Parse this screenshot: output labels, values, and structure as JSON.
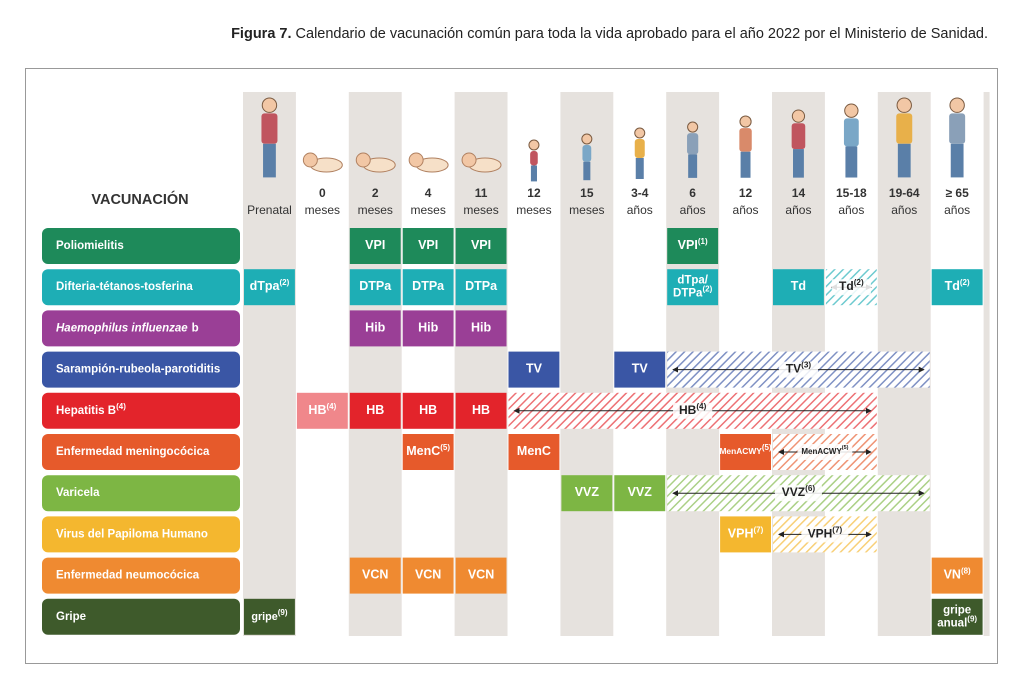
{
  "caption": {
    "label": "Figura 7.",
    "text": "Calendario de vacunación común para toda la vida aprobado para el año 2022 por el Ministerio de Sanidad."
  },
  "header": "VACUNACIÓN",
  "columns": [
    {
      "bottom": "Prenatal"
    },
    {
      "top": "0",
      "bottom": "meses"
    },
    {
      "top": "2",
      "bottom": "meses"
    },
    {
      "top": "4",
      "bottom": "meses"
    },
    {
      "top": "11",
      "bottom": "meses"
    },
    {
      "top": "12",
      "bottom": "meses"
    },
    {
      "top": "15",
      "bottom": "meses"
    },
    {
      "top": "3-4",
      "bottom": "años"
    },
    {
      "top": "6",
      "bottom": "años"
    },
    {
      "top": "12",
      "bottom": "años"
    },
    {
      "top": "14",
      "bottom": "años"
    },
    {
      "top": "15-18",
      "bottom": "años"
    },
    {
      "top": "19-64",
      "bottom": "años"
    },
    {
      "top": "≥ 65",
      "bottom": "años"
    }
  ],
  "rows": [
    {
      "name": "Poliomielitis",
      "color": "#1e8a5a",
      "cells": [
        {
          "col": 2,
          "span": 1,
          "style": "solid",
          "lines": [
            "VPI"
          ]
        },
        {
          "col": 3,
          "span": 1,
          "style": "solid",
          "lines": [
            "VPI"
          ]
        },
        {
          "col": 4,
          "span": 1,
          "style": "solid",
          "lines": [
            "VPI"
          ]
        },
        {
          "col": 8,
          "span": 1,
          "style": "solid",
          "lines": [
            "VPI"
          ],
          "sup": "(1)"
        }
      ]
    },
    {
      "name": "Difteria-tétanos-tosferina",
      "color": "#1eaeb5",
      "cells": [
        {
          "col": 0,
          "span": 1,
          "style": "solid",
          "lines": [
            "dTpa"
          ],
          "sup": "(2)"
        },
        {
          "col": 2,
          "span": 1,
          "style": "solid",
          "lines": [
            "DTPa"
          ]
        },
        {
          "col": 3,
          "span": 1,
          "style": "solid",
          "lines": [
            "DTPa"
          ]
        },
        {
          "col": 4,
          "span": 1,
          "style": "solid",
          "lines": [
            "DTPa"
          ]
        },
        {
          "col": 8,
          "span": 1,
          "style": "solid",
          "lines": [
            "dTpa/",
            "DTPa"
          ],
          "sup": "(2)"
        },
        {
          "col": 10,
          "span": 1,
          "style": "solid",
          "lines": [
            "Td"
          ]
        },
        {
          "col": 11,
          "span": 1,
          "style": "hatched",
          "lines": [
            "Td"
          ],
          "sup": "(2)"
        },
        {
          "col": 13,
          "span": 1,
          "style": "solid",
          "lines": [
            "Td"
          ],
          "sup": "(2)"
        }
      ]
    },
    {
      "name_italic": "Haemophilus influenzae",
      "name": "b",
      "color": "#9a3f96",
      "cells": [
        {
          "col": 2,
          "span": 1,
          "style": "solid",
          "lines": [
            "Hib"
          ]
        },
        {
          "col": 3,
          "span": 1,
          "style": "solid",
          "lines": [
            "Hib"
          ]
        },
        {
          "col": 4,
          "span": 1,
          "style": "solid",
          "lines": [
            "Hib"
          ]
        }
      ]
    },
    {
      "name": "Sarampión-rubeola-parotiditis",
      "color": "#3a56a5",
      "cells": [
        {
          "col": 5,
          "span": 1,
          "style": "solid",
          "lines": [
            "TV"
          ]
        },
        {
          "col": 7,
          "span": 1,
          "style": "solid",
          "lines": [
            "TV"
          ]
        },
        {
          "col": 8,
          "span": 5,
          "style": "hatched",
          "lines": [
            "TV"
          ],
          "sup": "(3)"
        }
      ]
    },
    {
      "name": "Hepatitis B",
      "sup": "(4)",
      "color": "#e3242b",
      "cells": [
        {
          "col": 1,
          "span": 1,
          "style": "light",
          "lines": [
            "HB"
          ],
          "sup": "(4)"
        },
        {
          "col": 2,
          "span": 1,
          "style": "solid",
          "lines": [
            "HB"
          ]
        },
        {
          "col": 3,
          "span": 1,
          "style": "solid",
          "lines": [
            "HB"
          ]
        },
        {
          "col": 4,
          "span": 1,
          "style": "solid",
          "lines": [
            "HB"
          ]
        },
        {
          "col": 5,
          "span": 7,
          "style": "hatched",
          "lines": [
            "HB"
          ],
          "sup": "(4)"
        }
      ]
    },
    {
      "name": "Enfermedad meningocócica",
      "color": "#e65a2b",
      "cells": [
        {
          "col": 3,
          "span": 1,
          "style": "solid",
          "lines": [
            "MenC"
          ],
          "sup": "(5)"
        },
        {
          "col": 5,
          "span": 1,
          "style": "solid",
          "lines": [
            "MenC"
          ]
        },
        {
          "col": 9,
          "span": 1,
          "style": "solid",
          "lines": [
            "MenACWY"
          ],
          "sup": "(5)"
        },
        {
          "col": 10,
          "span": 2,
          "style": "hatched",
          "lines": [
            "MenACWY"
          ],
          "sup": "(5)"
        }
      ]
    },
    {
      "name": "Varicela",
      "color": "#7db644",
      "cells": [
        {
          "col": 6,
          "span": 1,
          "style": "solid",
          "lines": [
            "VVZ"
          ]
        },
        {
          "col": 7,
          "span": 1,
          "style": "solid",
          "lines": [
            "VVZ"
          ]
        },
        {
          "col": 8,
          "span": 5,
          "style": "hatched",
          "lines": [
            "VVZ"
          ],
          "sup": "(6)"
        }
      ]
    },
    {
      "name": "Virus del Papiloma Humano",
      "color": "#f4b72f",
      "cells": [
        {
          "col": 9,
          "span": 1,
          "style": "solid",
          "lines": [
            "VPH"
          ],
          "sup": "(7)"
        },
        {
          "col": 10,
          "span": 2,
          "style": "hatched",
          "lines": [
            "VPH"
          ],
          "sup": "(7)"
        }
      ]
    },
    {
      "name": "Enfermedad neumocócica",
      "color": "#ef8a31",
      "cells": [
        {
          "col": 2,
          "span": 1,
          "style": "solid",
          "lines": [
            "VCN"
          ]
        },
        {
          "col": 3,
          "span": 1,
          "style": "solid",
          "lines": [
            "VCN"
          ]
        },
        {
          "col": 4,
          "span": 1,
          "style": "solid",
          "lines": [
            "VCN"
          ]
        },
        {
          "col": 13,
          "span": 1,
          "style": "solid",
          "lines": [
            "VN"
          ],
          "sup": "(8)"
        }
      ]
    },
    {
      "name": "Gripe",
      "color": "#3e5a2b",
      "cells": [
        {
          "col": 0,
          "span": 1,
          "style": "solid",
          "lines": [
            "gripe"
          ],
          "sup": "(9)"
        },
        {
          "col": 13,
          "span": 1,
          "style": "solid",
          "lines": [
            "gripe",
            "anual"
          ],
          "sup": "(9)"
        }
      ]
    }
  ]
}
